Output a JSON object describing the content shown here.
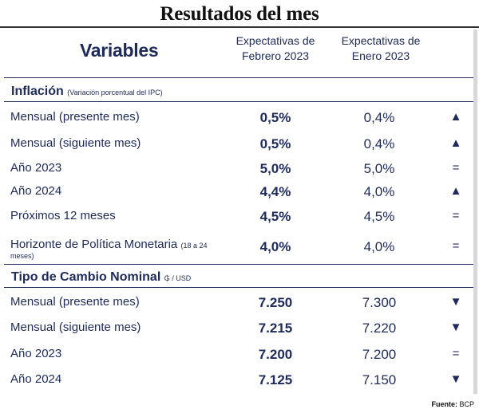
{
  "title": "Resultados del mes",
  "header": {
    "variables": "Variables",
    "col1_line1": "Expectativas de",
    "col1_line2": "Febrero 2023",
    "col2_line1": "Expectativas de",
    "col2_line2": "Enero 2023"
  },
  "inflation": {
    "title": "Inflación",
    "note": "(Variación porcentual del IPC)",
    "rows": [
      {
        "label": "Mensual (presente mes)",
        "feb": "0,5%",
        "ene": "0,4%",
        "trend": "▲"
      },
      {
        "label": "Mensual (siguiente mes)",
        "feb": "0,5%",
        "ene": "0,4%",
        "trend": "▲"
      },
      {
        "label": "Año 2023",
        "feb": "5,0%",
        "ene": "5,0%",
        "trend": "="
      },
      {
        "label": "Año 2024",
        "feb": "4,4%",
        "ene": "4,0%",
        "trend": "▲"
      },
      {
        "label": "Próximos 12 meses",
        "feb": "4,5%",
        "ene": "4,5%",
        "trend": "="
      },
      {
        "label": "Horizonte de Política Monetaria",
        "label_note": "(18 a 24",
        "label_note2": "meses)",
        "feb": "4,0%",
        "ene": "4,0%",
        "trend": "="
      }
    ]
  },
  "exchange": {
    "title": "Tipo de Cambio Nominal",
    "note": "₲ / USD",
    "rows": [
      {
        "label": "Mensual (presente mes)",
        "feb": "7.250",
        "ene": "7.300",
        "trend": "▼"
      },
      {
        "label": "Mensual (siguiente mes)",
        "feb": "7.215",
        "ene": "7.220",
        "trend": "▼"
      },
      {
        "label": "Año 2023",
        "feb": "7.200",
        "ene": "7.200",
        "trend": "="
      },
      {
        "label": "Año 2024",
        "feb": "7.125",
        "ene": "7.150",
        "trend": "▼"
      }
    ]
  },
  "source": {
    "label": "Fuente:",
    "value": "BCP"
  },
  "colors": {
    "text": "#1d2a5b",
    "rule": "#1d2a5b"
  }
}
